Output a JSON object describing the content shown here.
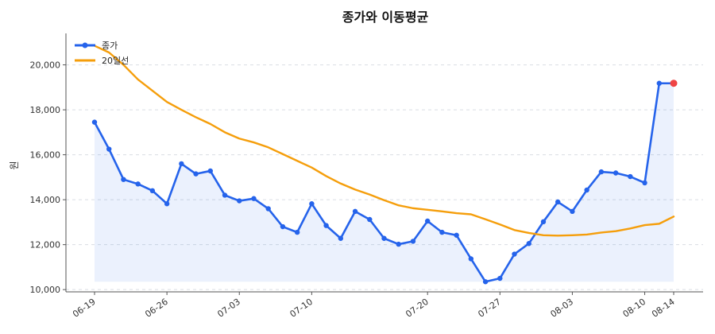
{
  "chart_data": {
    "type": "line",
    "title": "종가와 이동평균",
    "xlabel": "",
    "ylabel": "원",
    "ylim": [
      9900,
      21400
    ],
    "yticks": [
      10000,
      12000,
      14000,
      16000,
      18000,
      20000
    ],
    "ytick_labels": [
      "10,000",
      "12,000",
      "14,000",
      "16,000",
      "18,000",
      "20,000"
    ],
    "x": [
      "06-19",
      "06-20",
      "06-21",
      "06-22",
      "06-23",
      "06-26",
      "06-27",
      "06-28",
      "06-29",
      "06-30",
      "07-03",
      "07-04",
      "07-05",
      "07-06",
      "07-07",
      "07-10",
      "07-11",
      "07-12",
      "07-13",
      "07-14",
      "07-17",
      "07-18",
      "07-19",
      "07-20",
      "07-21",
      "07-24",
      "07-25",
      "07-26",
      "07-27",
      "07-28",
      "07-31",
      "08-01",
      "08-02",
      "08-03",
      "08-04",
      "08-07",
      "08-08",
      "08-09",
      "08-10",
      "08-11",
      "08-14"
    ],
    "xticks": [
      "06-19",
      "06-26",
      "07-03",
      "07-10",
      "07-20",
      "07-27",
      "08-03",
      "08-10",
      "08-14"
    ],
    "grid": true,
    "legend_position": "top-left",
    "series": [
      {
        "name": "종가",
        "color": "#2563eb",
        "marker": true,
        "fill": true,
        "values": [
          17450,
          16250,
          14900,
          14700,
          14400,
          13820,
          15600,
          15150,
          15280,
          14200,
          13950,
          14050,
          13600,
          12800,
          12550,
          13820,
          12850,
          12280,
          13480,
          13120,
          12280,
          12020,
          12150,
          13050,
          12550,
          12420,
          11370,
          10350,
          10500,
          11580,
          12050,
          13020,
          13900,
          13480,
          14430,
          15240,
          15190,
          15030,
          14750,
          19180,
          19180
        ]
      },
      {
        "name": "20일선",
        "color": "#f59e0b",
        "marker": false,
        "values": [
          20850,
          20550,
          20000,
          19350,
          18850,
          18350,
          18000,
          17670,
          17370,
          17000,
          16720,
          16550,
          16330,
          16030,
          15730,
          15430,
          15050,
          14720,
          14450,
          14230,
          13980,
          13750,
          13620,
          13550,
          13480,
          13400,
          13350,
          13130,
          12900,
          12650,
          12520,
          12420,
          12400,
          12420,
          12450,
          12540,
          12600,
          12720,
          12870,
          12930,
          13250
        ]
      }
    ],
    "highlight": {
      "x": "08-14",
      "value": 19180,
      "color": "#ef4444"
    }
  }
}
